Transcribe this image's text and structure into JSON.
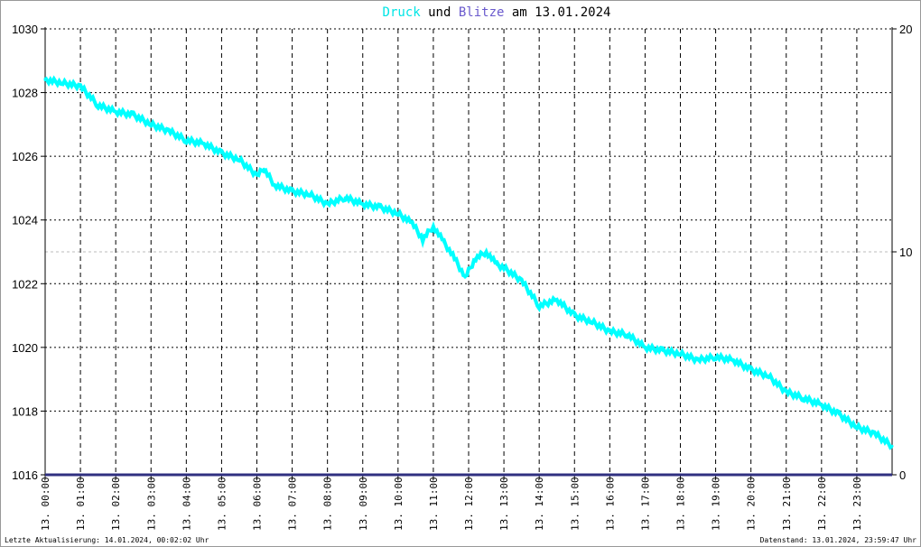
{
  "title": {
    "part1": "Druck",
    "part2": "und",
    "part3": "Blitze",
    "part4": "am 13.01.2024"
  },
  "colors": {
    "pressure": "#00ffff",
    "lightning": "#6a5acd",
    "axis": "#000000"
  },
  "footer": {
    "left": "Letzte Aktualisierung: 14.01.2024, 00:02:02 Uhr",
    "right": "Datenstand: 13.01.2024, 23:59:47 Uhr"
  },
  "chart_data": {
    "type": "line",
    "title": "Druck und Blitze am 13.01.2024",
    "ylim": [
      1016,
      1030
    ],
    "yticks": [
      "1016",
      "1018",
      "1020",
      "1022",
      "1024",
      "1026",
      "1028",
      "1030"
    ],
    "y2lim": [
      0,
      20
    ],
    "y2ticks": [
      "0",
      "10",
      "20"
    ],
    "xlim": [
      0,
      24
    ],
    "xticks": [
      "13. 00:00",
      "13. 01:00",
      "13. 02:00",
      "13. 03:00",
      "13. 04:00",
      "13. 05:00",
      "13. 06:00",
      "13. 07:00",
      "13. 08:00",
      "13. 09:00",
      "13. 10:00",
      "13. 11:00",
      "13. 12:00",
      "13. 13:00",
      "13. 14:00",
      "13. 15:00",
      "13. 16:00",
      "13. 17:00",
      "13. 18:00",
      "13. 19:00",
      "13. 20:00",
      "13. 21:00",
      "13. 22:00",
      "13. 23:00"
    ],
    "grid": true,
    "series": [
      {
        "name": "Druck",
        "x": [
          0,
          0.5,
          1,
          1.5,
          2,
          2.5,
          3,
          3.5,
          4,
          4.5,
          5,
          5.5,
          6,
          6.2,
          6.5,
          7,
          7.5,
          8,
          8.5,
          9,
          9.5,
          10,
          10.4,
          10.7,
          11,
          11.3,
          11.6,
          11.9,
          12.2,
          12.5,
          12.8,
          13,
          13.5,
          14,
          14.5,
          15,
          15.5,
          16,
          16.5,
          17,
          17.5,
          18,
          18.5,
          19,
          19.5,
          20,
          20.5,
          21,
          21.5,
          22,
          22.5,
          23,
          23.5,
          24
        ],
        "values": [
          1028.4,
          1028.3,
          1028.2,
          1027.6,
          1027.4,
          1027.3,
          1027.0,
          1026.8,
          1026.5,
          1026.4,
          1026.1,
          1025.9,
          1025.4,
          1025.6,
          1025.1,
          1024.9,
          1024.8,
          1024.5,
          1024.7,
          1024.5,
          1024.4,
          1024.2,
          1023.9,
          1023.4,
          1023.8,
          1023.3,
          1022.8,
          1022.2,
          1022.8,
          1023.0,
          1022.6,
          1022.5,
          1022.1,
          1021.3,
          1021.5,
          1021.0,
          1020.8,
          1020.5,
          1020.4,
          1020.0,
          1019.9,
          1019.8,
          1019.6,
          1019.7,
          1019.6,
          1019.3,
          1019.1,
          1018.6,
          1018.4,
          1018.2,
          1017.9,
          1017.5,
          1017.3,
          1016.9
        ]
      },
      {
        "name": "Blitze",
        "x": [
          0,
          24
        ],
        "values": [
          0,
          0
        ]
      }
    ]
  }
}
